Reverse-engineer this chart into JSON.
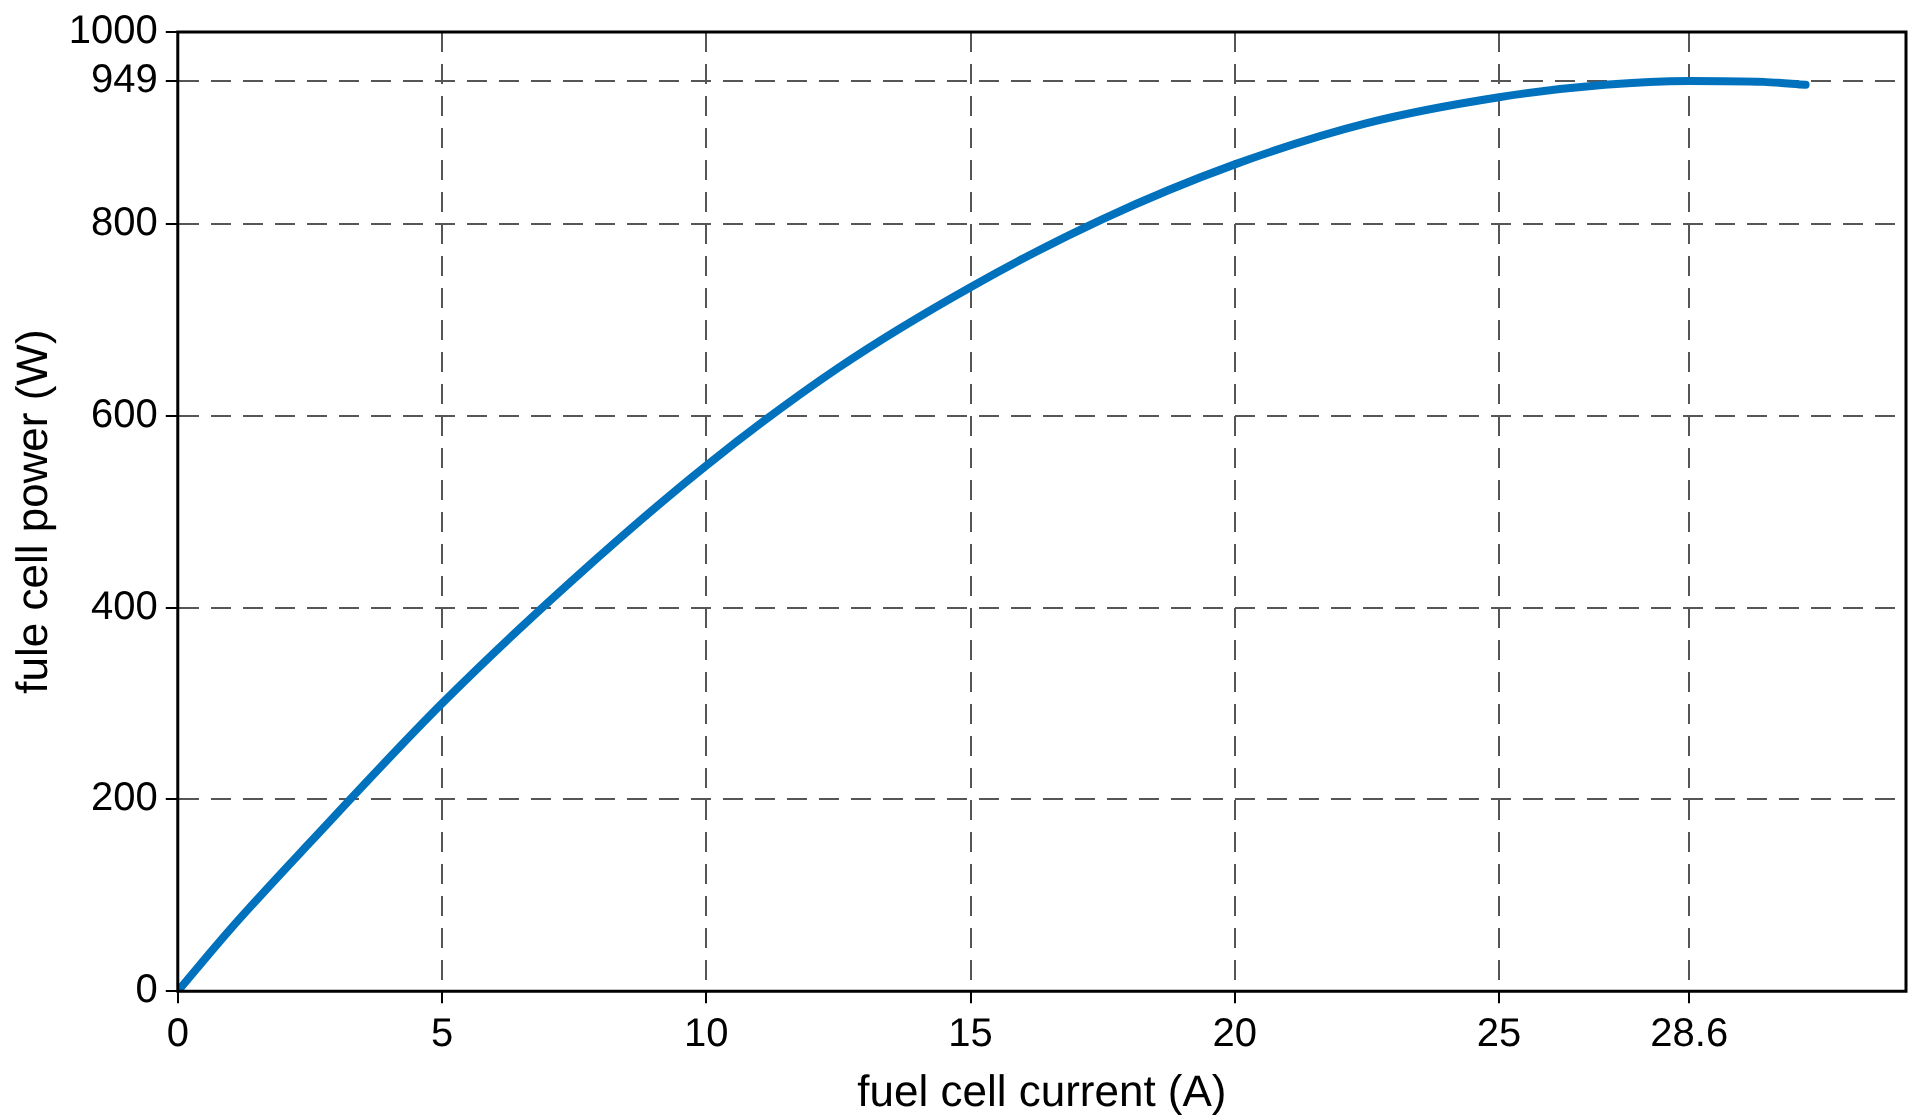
{
  "chart_data": {
    "type": "line",
    "xlabel": "fuel cell current (A)",
    "ylabel": "fule cell power (W)",
    "x": [
      0,
      1,
      2.5,
      5,
      7.5,
      10,
      12.5,
      15,
      17.5,
      20,
      22.5,
      25,
      27,
      28.6,
      30,
      30.8
    ],
    "series": [
      {
        "color": "#0072bd",
        "values": [
          0,
          65,
          155,
          300,
          430,
          548,
          650,
          734,
          805,
          862,
          905,
          932,
          945,
          949,
          948,
          945
        ]
      }
    ],
    "xlim": [
      0,
      32.7
    ],
    "xticks": [
      0,
      5,
      10,
      15,
      20,
      25,
      28.6
    ],
    "ylim": [
      0,
      1000
    ],
    "yticks": [
      0,
      200,
      400,
      600,
      800,
      949,
      1000
    ],
    "grid": true,
    "line_style": "solid",
    "marker": "none",
    "legend": false
  }
}
